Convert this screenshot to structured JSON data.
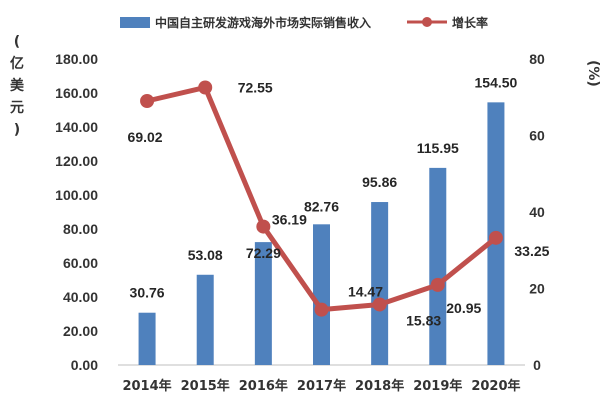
{
  "chart_data": {
    "type": "bar+line",
    "categories": [
      "2014年",
      "2015年",
      "2016年",
      "2017年",
      "2018年",
      "2019年",
      "2020年"
    ],
    "series": [
      {
        "name": "中国自主研发游戏海外市场实际销售收入",
        "type": "bar",
        "axis": "left",
        "color": "#4f81bd",
        "values": [
          30.76,
          53.08,
          72.29,
          82.76,
          95.86,
          115.95,
          154.5
        ],
        "labels": [
          "30.76",
          "53.08",
          "72.29",
          "82.76",
          "95.86",
          "115.95",
          "154.50"
        ]
      },
      {
        "name": "增长率",
        "type": "line",
        "axis": "right",
        "color": "#c0504d",
        "values": [
          69.02,
          72.55,
          36.19,
          14.47,
          15.83,
          20.95,
          33.25
        ],
        "labels": [
          "69.02",
          "72.55",
          "36.19",
          "14.47",
          "15.83",
          "20.95",
          "33.25"
        ]
      }
    ],
    "y_left": {
      "unit_chars": [
        "(",
        "亿",
        "美",
        "元",
        ")"
      ],
      "ylim": [
        0,
        180
      ],
      "ticks": [
        "0.00",
        "20.00",
        "40.00",
        "60.00",
        "80.00",
        "100.00",
        "120.00",
        "140.00",
        "160.00",
        "180.00"
      ]
    },
    "y_right": {
      "unit": "(%)",
      "ylim": [
        0,
        80
      ],
      "ticks": [
        "0",
        "20",
        "40",
        "60",
        "80"
      ]
    },
    "grid": false,
    "legend_position": "top"
  }
}
